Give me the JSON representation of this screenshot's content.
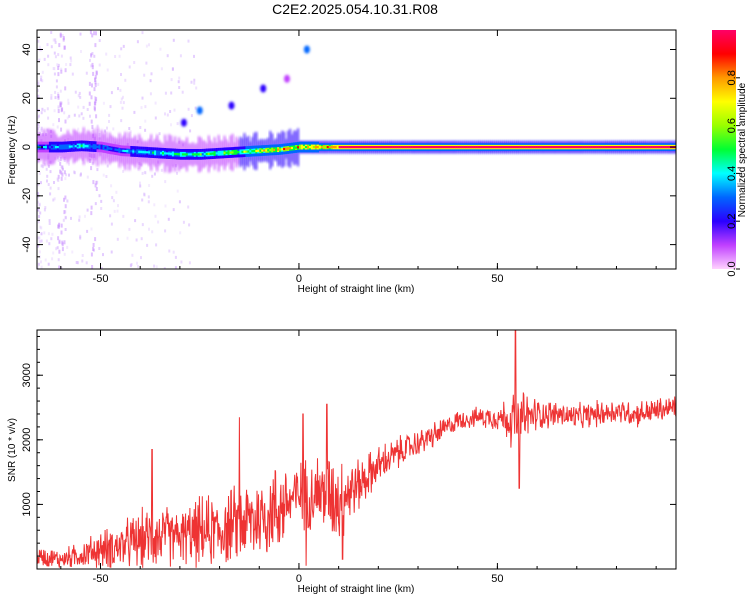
{
  "figure": {
    "title": "C2E2.2025.054.10.31.R08"
  },
  "chart_data": [
    {
      "type": "heatmap",
      "title": "",
      "xlabel": "Height of straight line (km)",
      "ylabel": "Frequency (Hz)",
      "xlim": [
        -66,
        95
      ],
      "ylim": [
        -50,
        48
      ],
      "xticks": [
        -50,
        0,
        50
      ],
      "yticks": [
        -40,
        -20,
        0,
        20,
        40
      ],
      "colorbar": {
        "label": "Normalized spectral amplitude",
        "range": [
          0.0,
          1.0
        ],
        "ticks": [
          "0.0",
          "0.2",
          "0.4",
          "0.6",
          "0.8"
        ],
        "tick_values": [
          0.0,
          0.2,
          0.4,
          0.6,
          0.8
        ],
        "colors": [
          "#ffd2ff",
          "#c040ff",
          "#2a00ff",
          "#0066ff",
          "#00ffff",
          "#00ff33",
          "#99ff00",
          "#ffff00",
          "#ff9900",
          "#ff0000",
          "#ff0066"
        ]
      },
      "ridge": {
        "description_x": [
          -66,
          -60,
          -55,
          -50,
          -45,
          -40,
          -35,
          -30,
          -25,
          -20,
          -15,
          -10,
          -5,
          0,
          5,
          10,
          20,
          40,
          60,
          80,
          95
        ],
        "frequency": [
          0,
          0,
          0.5,
          0,
          -1.5,
          -2,
          -2.5,
          -3,
          -3,
          -2.5,
          -2,
          -1.5,
          -1,
          0,
          0,
          0,
          0,
          0,
          0,
          0,
          0
        ],
        "amplitude": [
          0.35,
          0.4,
          0.45,
          0.35,
          0.35,
          0.4,
          0.45,
          0.5,
          0.55,
          0.55,
          0.6,
          0.7,
          0.8,
          0.85,
          0.9,
          0.95,
          0.95,
          0.95,
          0.95,
          0.95,
          0.95
        ]
      },
      "harmonic_blobs": [
        {
          "x": 2,
          "y": 40,
          "amp": 0.25
        },
        {
          "x": -25,
          "y": 15,
          "amp": 0.25
        },
        {
          "x": -17,
          "y": 17,
          "amp": 0.2
        },
        {
          "x": -9,
          "y": 24,
          "amp": 0.15
        },
        {
          "x": -29,
          "y": 10,
          "amp": 0.15
        },
        {
          "x": -3,
          "y": 28,
          "amp": 0.1
        }
      ]
    },
    {
      "type": "line",
      "title": "",
      "xlabel": "Height of straight line (km)",
      "ylabel": "SNR (10 * v/v)",
      "xlim": [
        -66,
        95
      ],
      "ylim": [
        0,
        3700
      ],
      "xticks": [
        -50,
        0,
        50
      ],
      "yticks": [
        1000,
        2000,
        3000
      ],
      "line_color": "#ee3333",
      "envelope_x": [
        -66,
        -60,
        -55,
        -50,
        -45,
        -40,
        -35,
        -30,
        -25,
        -20,
        -15,
        -10,
        -5,
        0,
        5,
        10,
        15,
        20,
        25,
        30,
        35,
        40,
        45,
        50,
        55,
        60,
        65,
        70,
        75,
        80,
        85,
        90,
        95
      ],
      "envelope_mean": [
        200,
        150,
        220,
        300,
        350,
        450,
        500,
        500,
        550,
        600,
        700,
        800,
        950,
        1150,
        1200,
        1100,
        1300,
        1600,
        1800,
        1950,
        2100,
        2300,
        2350,
        2350,
        2300,
        2400,
        2400,
        2350,
        2400,
        2450,
        2400,
        2450,
        2500
      ],
      "envelope_spread": [
        150,
        150,
        200,
        300,
        350,
        450,
        500,
        400,
        550,
        550,
        600,
        700,
        700,
        500,
        600,
        700,
        400,
        300,
        250,
        200,
        200,
        150,
        150,
        200,
        500,
        250,
        200,
        200,
        200,
        200,
        200,
        200,
        200
      ],
      "spikes": [
        {
          "x": 54.5,
          "y": 3700
        },
        {
          "x": 55.5,
          "y": 1250
        },
        {
          "x": -37,
          "y": 1850
        },
        {
          "x": -15,
          "y": 2350
        },
        {
          "x": 1,
          "y": 2400
        },
        {
          "x": 7,
          "y": 2550
        },
        {
          "x": 1.8,
          "y": 50
        },
        {
          "x": 11,
          "y": 150
        }
      ]
    }
  ]
}
